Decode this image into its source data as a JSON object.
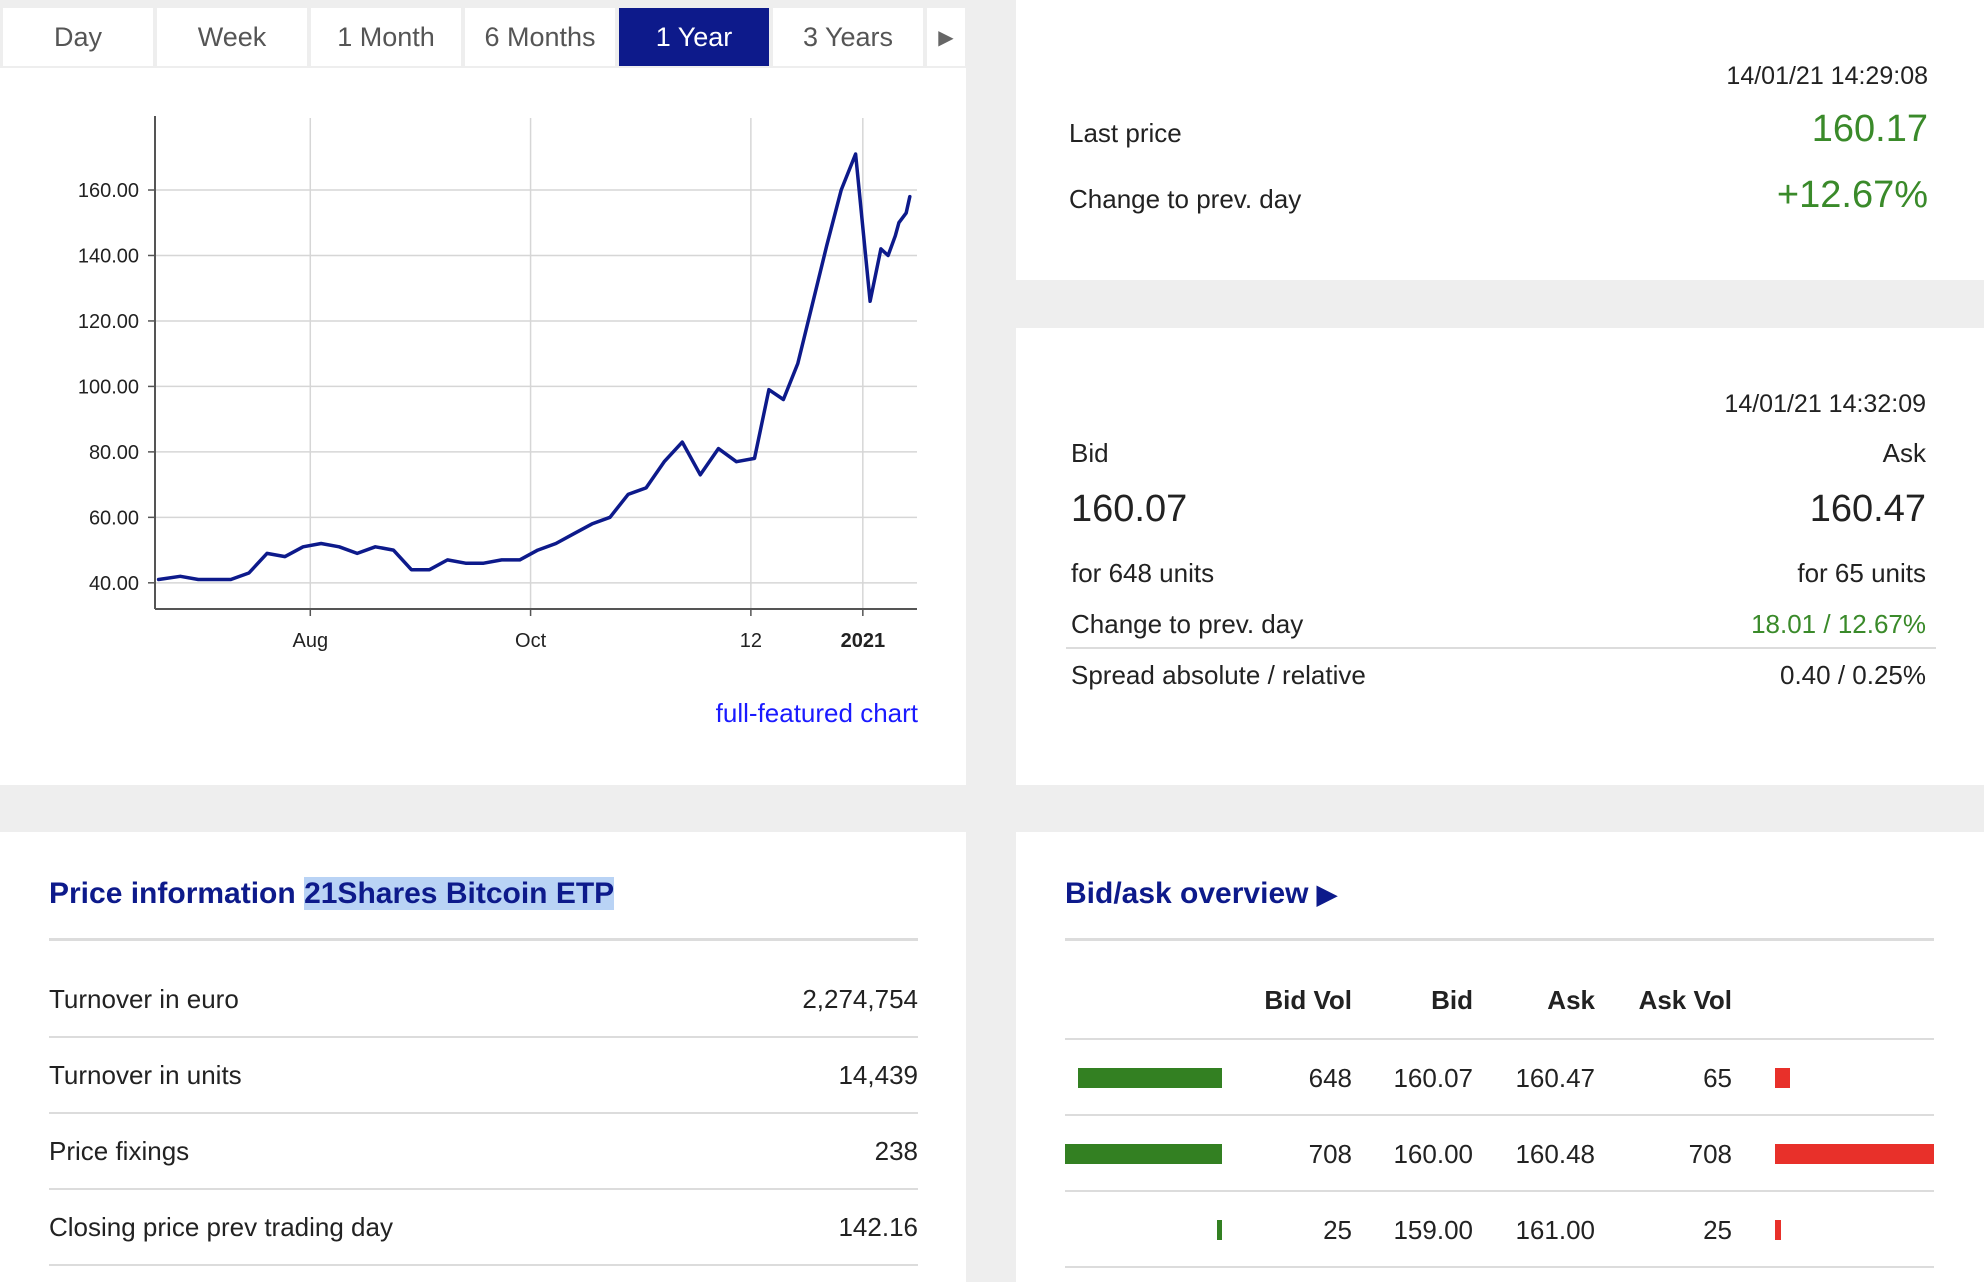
{
  "tabs": [
    {
      "label": "Day",
      "active": false
    },
    {
      "label": "Week",
      "active": false
    },
    {
      "label": "1 Month",
      "active": false
    },
    {
      "label": "6 Months",
      "active": false
    },
    {
      "label": "1 Year",
      "active": true
    },
    {
      "label": "3 Years",
      "active": false
    }
  ],
  "tabs_more_icon": "play-right-icon",
  "chart_data": {
    "type": "line",
    "series": [
      {
        "color": "#0d1a8b",
        "x": [
          "2020-06-20",
          "2020-06-26",
          "2020-07-01",
          "2020-07-05",
          "2020-07-10",
          "2020-07-15",
          "2020-07-20",
          "2020-07-25",
          "2020-07-30",
          "2020-08-04",
          "2020-08-09",
          "2020-08-14",
          "2020-08-19",
          "2020-08-24",
          "2020-08-29",
          "2020-09-03",
          "2020-09-08",
          "2020-09-13",
          "2020-09-18",
          "2020-09-23",
          "2020-09-28",
          "2020-10-03",
          "2020-10-08",
          "2020-10-13",
          "2020-10-18",
          "2020-10-23",
          "2020-10-28",
          "2020-11-02",
          "2020-11-07",
          "2020-11-12",
          "2020-11-17",
          "2020-11-22",
          "2020-11-27",
          "2020-12-02",
          "2020-12-06",
          "2020-12-10",
          "2020-12-14",
          "2020-12-18",
          "2020-12-22",
          "2020-12-26",
          "2020-12-30",
          "2021-01-03",
          "2021-01-06",
          "2021-01-08",
          "2021-01-10",
          "2021-01-11",
          "2021-01-13",
          "2021-01-14"
        ],
        "values": [
          41,
          42,
          41,
          41,
          41,
          43,
          49,
          48,
          51,
          52,
          51,
          49,
          51,
          50,
          44,
          44,
          47,
          46,
          46,
          47,
          47,
          50,
          52,
          55,
          58,
          60,
          67,
          69,
          77,
          83,
          73,
          81,
          77,
          78,
          99,
          96,
          107,
          125,
          143,
          160,
          171,
          126,
          142,
          140,
          146,
          150,
          153,
          158
        ]
      }
    ],
    "x_ticks": [
      {
        "label": "Aug",
        "at": "2020-08-01"
      },
      {
        "label": "Oct",
        "at": "2020-10-01"
      },
      {
        "label": "12",
        "at": "2020-12-01"
      },
      {
        "label": "2021",
        "at": "2021-01-01",
        "bold": true
      }
    ],
    "y_ticks": [
      "40.00",
      "60.00",
      "80.00",
      "100.00",
      "120.00",
      "140.00",
      "160.00"
    ],
    "ylim": [
      32,
      182
    ],
    "xlim": [
      "2020-06-19",
      "2021-01-16"
    ],
    "grid": true
  },
  "full_chart_link": "full-featured chart",
  "quote": {
    "timestamp": "14/01/21 14:29:08",
    "last_price_label": "Last price",
    "last_price": "160.17",
    "change_label": "Change to prev. day",
    "change": "+12.67%"
  },
  "bidask": {
    "timestamp": "14/01/21 14:32:09",
    "bid_label": "Bid",
    "ask_label": "Ask",
    "bid": "160.07",
    "ask": "160.47",
    "bid_units": "for 648 units",
    "ask_units": "for 65 units",
    "change_label": "Change to prev. day",
    "change": "18.01 / 12.67%",
    "spread_label": "Spread absolute / relative",
    "spread": "0.40 / 0.25%"
  },
  "price_info": {
    "title_prefix": "Price information",
    "title_product": "21Shares Bitcoin ETP",
    "rows": [
      {
        "label": "Turnover in euro",
        "value": "2,274,754"
      },
      {
        "label": "Turnover in units",
        "value": "14,439"
      },
      {
        "label": "Price fixings",
        "value": "238"
      },
      {
        "label": "Closing price prev trading day",
        "value": "142.16"
      }
    ]
  },
  "overview": {
    "title": "Bid/ask overview",
    "title_icon": "play-right-icon",
    "headers": {
      "bid_vol": "Bid Vol",
      "bid": "Bid",
      "ask": "Ask",
      "ask_vol": "Ask Vol"
    },
    "rows": [
      {
        "bid_vol": "648",
        "bid": "160.07",
        "ask": "160.47",
        "ask_vol": "65",
        "bid_bar_fraction": 0.915,
        "ask_bar_fraction": 0.092
      },
      {
        "bid_vol": "708",
        "bid": "160.00",
        "ask": "160.48",
        "ask_vol": "708",
        "bid_bar_fraction": 1.0,
        "ask_bar_fraction": 1.0
      },
      {
        "bid_vol": "25",
        "bid": "159.00",
        "ask": "161.00",
        "ask_vol": "25",
        "bid_bar_fraction": 0.035,
        "ask_bar_fraction": 0.035
      }
    ],
    "colors": {
      "bid_bar": "#338022",
      "ask_bar": "#e8302a"
    }
  }
}
